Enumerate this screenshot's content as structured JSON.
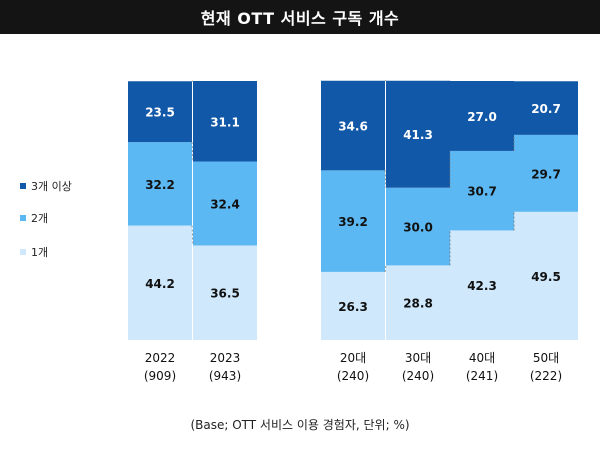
{
  "title": "현재 OTT 서비스 구독 개수",
  "note": "(Base; OTT 서비스 이용 경험자, 단위; %)",
  "chart_data": {
    "type": "bar",
    "stacked": true,
    "title": "현재 OTT 서비스 구독 개수",
    "categories": [
      "2022",
      "2023",
      "20대",
      "30대",
      "40대",
      "50대"
    ],
    "category_bases": [
      "(909)",
      "(943)",
      "(240)",
      "(240)",
      "(241)",
      "(222)"
    ],
    "series": [
      {
        "name": "1개",
        "color": "#cfe8fb",
        "values": [
          44.2,
          36.5,
          26.3,
          28.8,
          42.3,
          49.5
        ]
      },
      {
        "name": "2개",
        "color": "#5cb8f2",
        "values": [
          32.2,
          32.4,
          39.2,
          30.0,
          30.7,
          29.7
        ]
      },
      {
        "name": "3개 이상",
        "color": "#1158a8",
        "values": [
          23.5,
          31.1,
          34.6,
          41.3,
          27.0,
          20.7
        ]
      }
    ],
    "value_labels": [
      [
        "44.2",
        "36.5",
        "26.3",
        "28.8",
        "42.3",
        "49.5"
      ],
      [
        "32.2",
        "32.4",
        "39.2",
        "30.0",
        "30.7",
        "29.7"
      ],
      [
        "23.5",
        "31.1",
        "34.6",
        "41.3",
        "27.0",
        "20.7"
      ]
    ],
    "legend_order": [
      "3개 이상",
      "2개",
      "1개"
    ],
    "legend_position": "left",
    "connector_lines": "dashed",
    "ylim": [
      0,
      100
    ]
  }
}
